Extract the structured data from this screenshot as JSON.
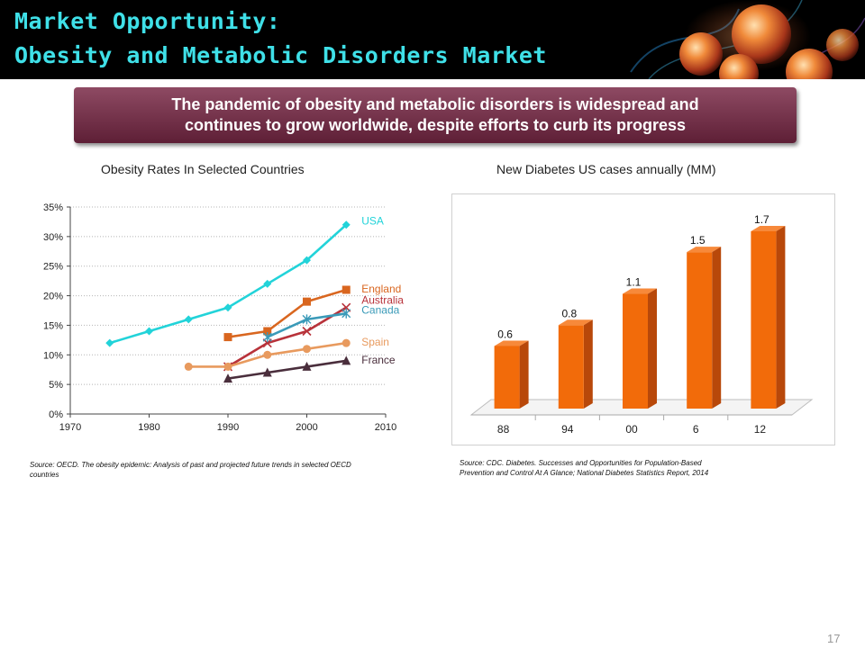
{
  "header": {
    "title_line1": "Market Opportunity:",
    "title_line2": "Obesity and Metabolic Disorders Market"
  },
  "banner": {
    "line1": "The pandemic of obesity and metabolic disorders is widespread and",
    "line2": "continues to grow worldwide, despite efforts to curb its progress"
  },
  "obesity_chart": {
    "source_line1": "Source: OECD. The obesity epidemic: Analysis of past and projected future trends in selected OECD",
    "source_line2": "countries"
  },
  "diabetes_chart": {
    "source_line1": "Source: CDC.  Diabetes. Successes and Opportunities for Population-Based",
    "source_line2": "Prevention and Control At A Glance; National Diabetes Statistics Report, 2014"
  },
  "page_number": "17",
  "chart_data": [
    {
      "type": "line",
      "title": "Obesity Rates In Selected Countries",
      "xlabel": "",
      "ylabel": "",
      "xlim": [
        1970,
        2010
      ],
      "ylim": [
        0,
        35
      ],
      "x_ticks": [
        "1970",
        "1980",
        "1990",
        "2000",
        "2010"
      ],
      "y_ticks": [
        "0%",
        "5%",
        "10%",
        "15%",
        "20%",
        "25%",
        "30%",
        "35%"
      ],
      "grid": "horizontal dotted",
      "legend": "labels at line ends",
      "series": [
        {
          "name": "USA",
          "color": "#22d3d9",
          "marker": "diamond",
          "points": [
            [
              1975,
              12
            ],
            [
              1980,
              14
            ],
            [
              1985,
              16
            ],
            [
              1990,
              18
            ],
            [
              1995,
              22
            ],
            [
              2000,
              26
            ],
            [
              2005,
              32
            ]
          ]
        },
        {
          "name": "England",
          "color": "#d9661f",
          "marker": "square",
          "points": [
            [
              1990,
              13
            ],
            [
              1995,
              14
            ],
            [
              2000,
              19
            ],
            [
              2005,
              21
            ]
          ]
        },
        {
          "name": "Australia",
          "color": "#b8323a",
          "marker": "x",
          "points": [
            [
              1990,
              8
            ],
            [
              1995,
              12
            ],
            [
              2000,
              14
            ],
            [
              2005,
              18
            ]
          ]
        },
        {
          "name": "Canada",
          "color": "#3a9ab8",
          "marker": "star",
          "points": [
            [
              1995,
              13
            ],
            [
              2000,
              16
            ],
            [
              2005,
              17
            ]
          ]
        },
        {
          "name": "Spain",
          "color": "#e89a5e",
          "marker": "circle",
          "points": [
            [
              1985,
              8
            ],
            [
              1990,
              8
            ],
            [
              1995,
              10
            ],
            [
              2000,
              11
            ],
            [
              2005,
              12
            ]
          ]
        },
        {
          "name": "France",
          "color": "#4a2e3c",
          "marker": "triangle",
          "points": [
            [
              1990,
              6
            ],
            [
              1995,
              7
            ],
            [
              2000,
              8
            ],
            [
              2005,
              9
            ]
          ]
        }
      ]
    },
    {
      "type": "bar",
      "title": "New Diabetes US cases annually (MM)",
      "categories": [
        "88",
        "94",
        "00",
        "6",
        "12"
      ],
      "values": [
        0.6,
        0.8,
        1.1,
        1.5,
        1.7
      ],
      "data_labels": [
        "0.6",
        "0.8",
        "1.1",
        "1.5",
        "1.7"
      ],
      "xlabel": "",
      "ylabel": "",
      "ylim": [
        0,
        1.7
      ],
      "color": "#f26b0a"
    }
  ]
}
